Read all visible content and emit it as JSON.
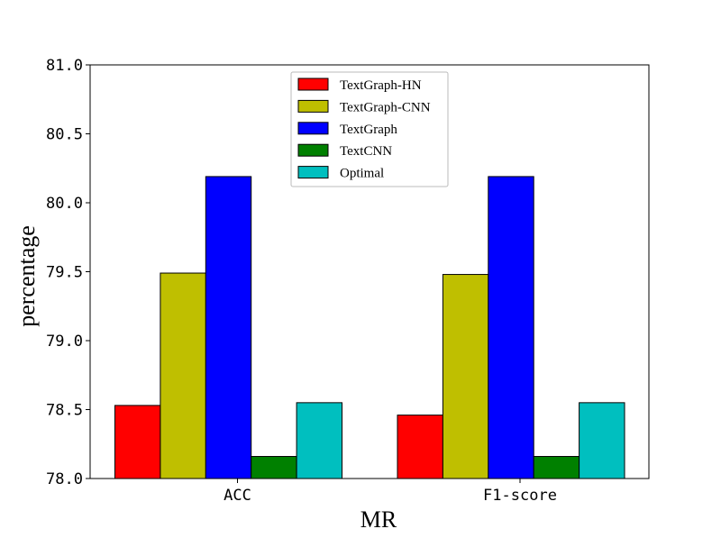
{
  "chart_data": {
    "type": "bar",
    "title": "",
    "xlabel": "MR",
    "ylabel": "percentage",
    "categories": [
      "ACC",
      "F1-score"
    ],
    "ylim": [
      78.0,
      81.0
    ],
    "yticks": [
      "78.0",
      "78.5",
      "79.0",
      "79.5",
      "80.0",
      "80.5",
      "81.0"
    ],
    "grid": false,
    "legend_position": "top-center",
    "series": [
      {
        "name": "TextGraph-HN",
        "color": "#ff0000",
        "values": [
          78.53,
          78.46
        ]
      },
      {
        "name": "TextGraph-CNN",
        "color": "#bfbf00",
        "values": [
          79.49,
          79.48
        ]
      },
      {
        "name": "TextGraph",
        "color": "#0000ff",
        "values": [
          80.19,
          80.19
        ]
      },
      {
        "name": "TextCNN",
        "color": "#008000",
        "values": [
          78.16,
          78.16
        ]
      },
      {
        "name": "Optimal",
        "color": "#00bfbf",
        "values": [
          78.55,
          78.55
        ]
      }
    ]
  }
}
